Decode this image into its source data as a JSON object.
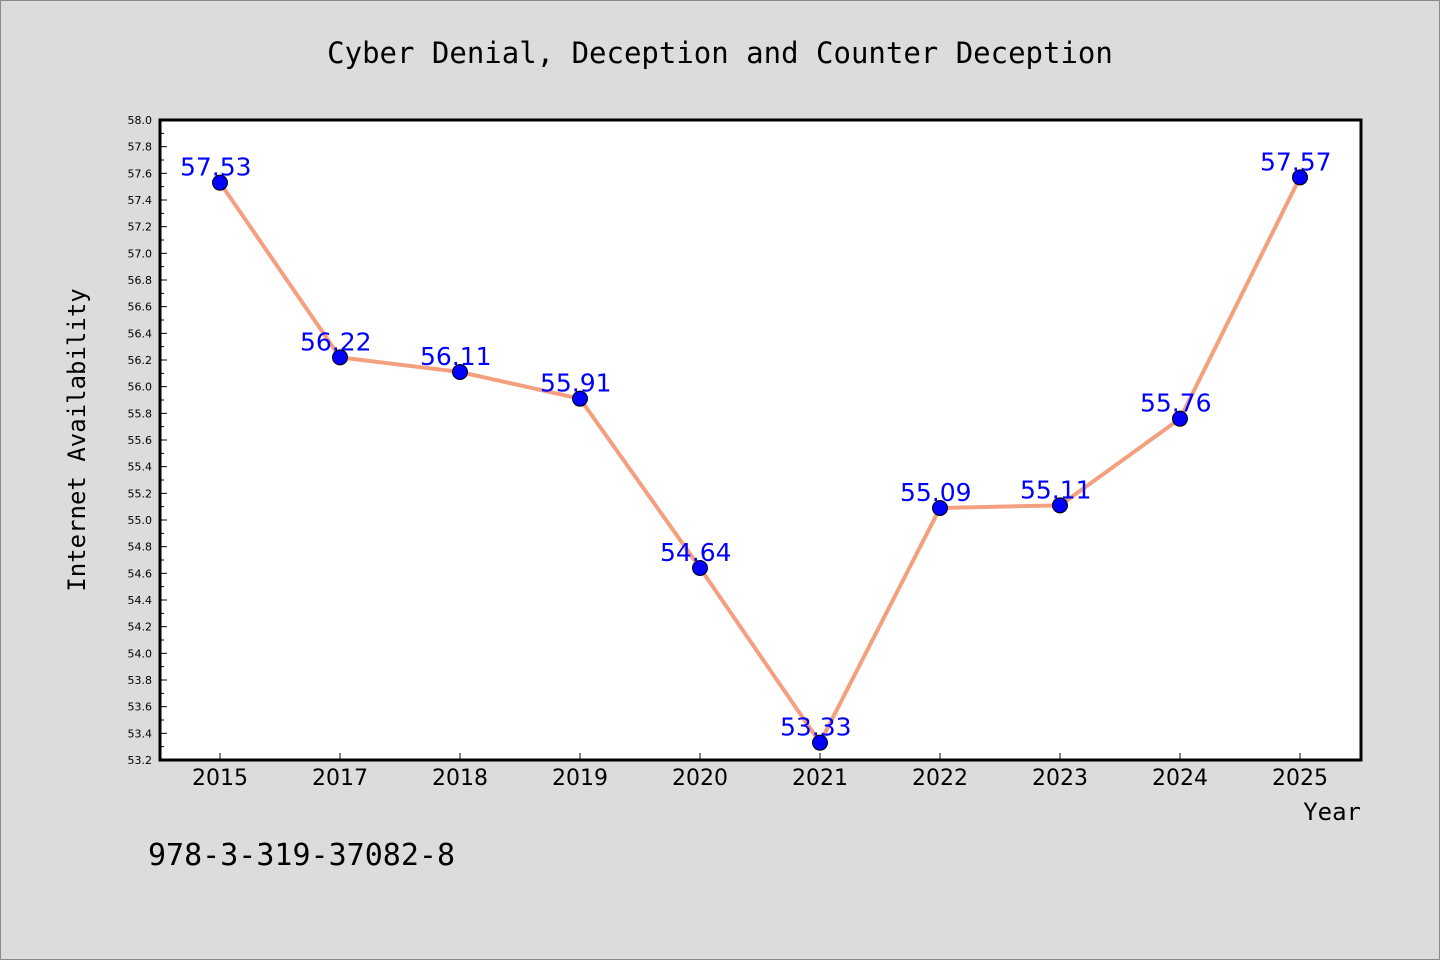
{
  "chart_data": {
    "type": "line",
    "title": "Cyber Denial, Deception and Counter Deception",
    "xlabel": "Year",
    "ylabel": "Internet Availability",
    "categories": [
      "2015",
      "2017",
      "2018",
      "2019",
      "2020",
      "2021",
      "2022",
      "2023",
      "2024",
      "2025"
    ],
    "series": [
      {
        "values": [
          57.53,
          56.22,
          56.11,
          55.91,
          54.64,
          53.33,
          55.09,
          55.11,
          55.76,
          57.57
        ]
      }
    ],
    "data_labels": [
      "57.53",
      "56.22",
      "56.11",
      "55.91",
      "54.64",
      "53.33",
      "55.09",
      "55.11",
      "55.76",
      "57.57"
    ],
    "ylim": [
      53.2,
      58.0
    ],
    "ytick_step": 0.2,
    "grid": false,
    "line_color": "#f4a07f",
    "marker_color": "#0000ff",
    "label_color": "#0000ff"
  },
  "footer": {
    "isbn": "978-3-319-37082-8"
  }
}
